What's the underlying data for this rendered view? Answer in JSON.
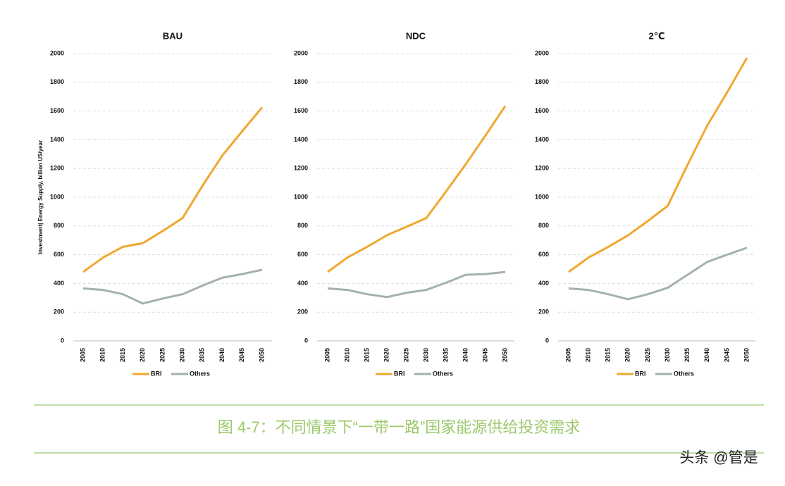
{
  "chart_data": [
    {
      "type": "line",
      "title": "BAU",
      "y_label": "Investment| Energy Supply, billion US/year",
      "categories": [
        "2005",
        "2010",
        "2015",
        "2020",
        "2025",
        "2030",
        "2035",
        "2040",
        "2045",
        "2050"
      ],
      "series": [
        {
          "name": "BRI",
          "color": "#f0a830",
          "values": [
            480,
            580,
            655,
            680,
            765,
            855,
            1080,
            1290,
            1460,
            1625
          ]
        },
        {
          "name": "Others",
          "color": "#a3b1b3",
          "values": [
            365,
            355,
            325,
            260,
            295,
            325,
            385,
            440,
            465,
            495
          ]
        }
      ],
      "ylim": [
        0,
        2000
      ],
      "yticks": [
        0,
        200,
        400,
        600,
        800,
        1000,
        1200,
        1400,
        1600,
        1800,
        2000
      ],
      "grid": true
    },
    {
      "type": "line",
      "title": "NDC",
      "categories": [
        "2005",
        "2010",
        "2015",
        "2020",
        "2025",
        "2030",
        "2035",
        "2040",
        "2045",
        "2050"
      ],
      "series": [
        {
          "name": "BRI",
          "color": "#f0a830",
          "values": [
            480,
            580,
            655,
            735,
            795,
            855,
            1040,
            1230,
            1430,
            1635
          ]
        },
        {
          "name": "Others",
          "color": "#a3b1b3",
          "values": [
            365,
            355,
            325,
            305,
            335,
            355,
            405,
            460,
            465,
            480
          ]
        }
      ],
      "ylim": [
        0,
        2000
      ],
      "yticks": [
        0,
        200,
        400,
        600,
        800,
        1000,
        1200,
        1400,
        1600,
        1800,
        2000
      ],
      "grid": true
    },
    {
      "type": "line",
      "title": "2℃",
      "categories": [
        "2005",
        "2010",
        "2015",
        "2020",
        "2025",
        "2030",
        "2035",
        "2040",
        "2045",
        "2050"
      ],
      "series": [
        {
          "name": "BRI",
          "color": "#f0a830",
          "values": [
            480,
            580,
            655,
            735,
            835,
            940,
            1225,
            1500,
            1730,
            1970
          ]
        },
        {
          "name": "Others",
          "color": "#a3b1b3",
          "values": [
            365,
            355,
            325,
            290,
            325,
            370,
            460,
            550,
            600,
            648
          ]
        }
      ],
      "ylim": [
        0,
        2000
      ],
      "yticks": [
        0,
        200,
        400,
        600,
        800,
        1000,
        1200,
        1400,
        1600,
        1800,
        2000
      ],
      "grid": true
    }
  ],
  "caption": "图 4-7：不同情景下“一带一路”国家能源供给投资需求",
  "watermark": "头条 @管是"
}
